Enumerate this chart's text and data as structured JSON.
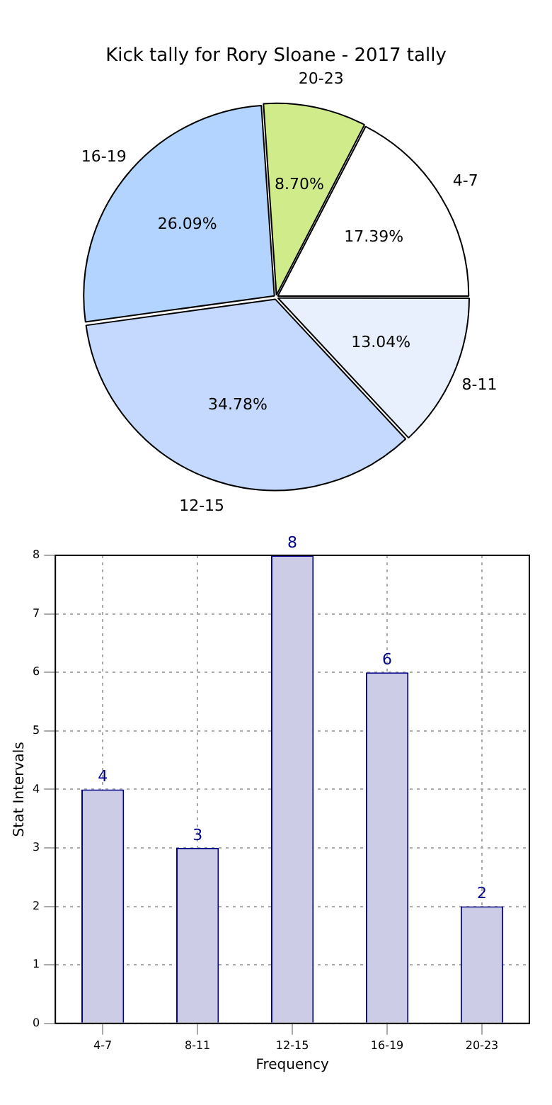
{
  "chart_data": [
    {
      "type": "pie",
      "title": "Kick tally for Rory Sloane - 2017 tally",
      "categories": [
        "4-7",
        "8-11",
        "12-15",
        "16-19",
        "20-23"
      ],
      "values": [
        17.39,
        13.04,
        34.78,
        26.09,
        8.7
      ],
      "colors": [
        "#ffffff",
        "#e8f0fe",
        "#c5d9fe",
        "#b3d4fe",
        "#d0eb8a"
      ],
      "value_labels": [
        "17.39%",
        "13.04%",
        "34.78%",
        "26.09%",
        "8.70%"
      ]
    },
    {
      "type": "bar",
      "xlabel": "Frequency",
      "ylabel": "Stat Intervals",
      "categories": [
        "4-7",
        "8-11",
        "12-15",
        "16-19",
        "20-23"
      ],
      "values": [
        4,
        3,
        8,
        6,
        2
      ],
      "color": "#cccce6",
      "ylim": [
        0,
        8
      ],
      "yticks": [
        0,
        1,
        2,
        3,
        4,
        5,
        6,
        7,
        8
      ],
      "grid": true,
      "data_labels": true
    }
  ]
}
